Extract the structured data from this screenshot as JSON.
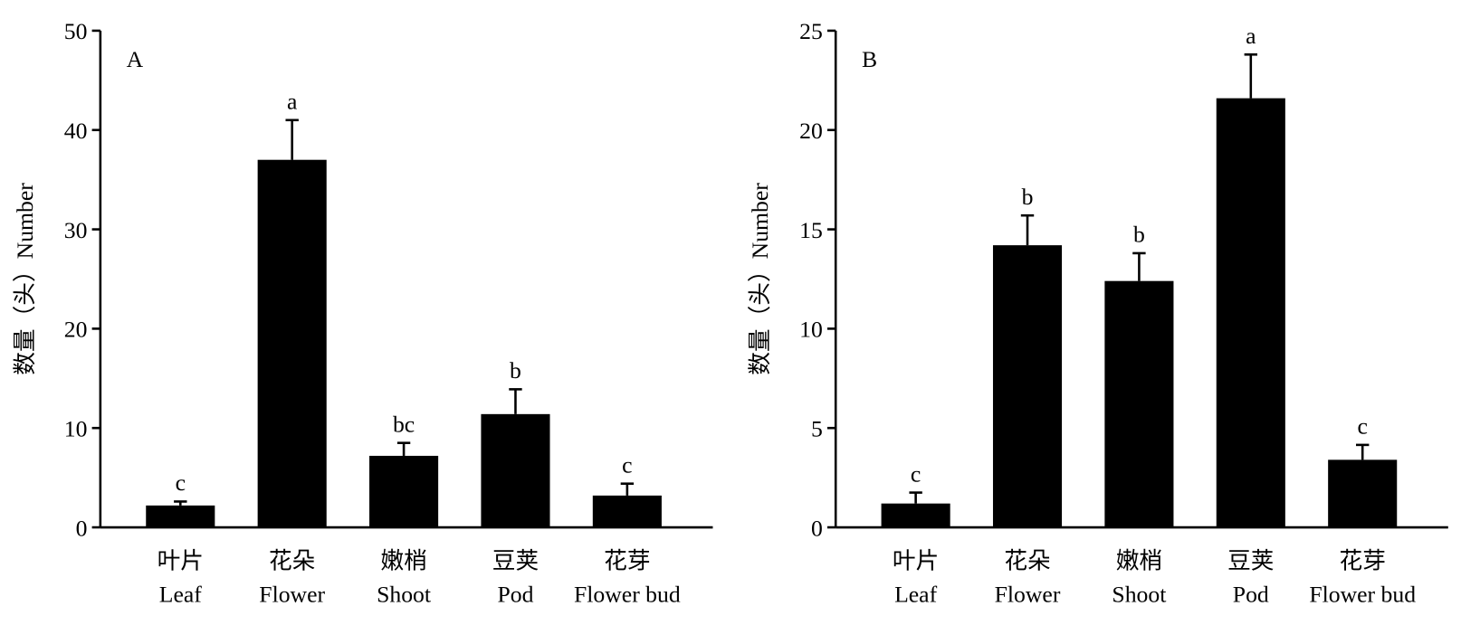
{
  "chart_data": [
    {
      "type": "bar",
      "panel": "A",
      "ylabel": "数量（头）Number",
      "categories_zh": [
        "叶片",
        "花朵",
        "嫩梢",
        "豆荚",
        "花芽"
      ],
      "categories": [
        "Leaf",
        "Flower",
        "Shoot",
        "Pod",
        "Flower bud"
      ],
      "values": [
        2.2,
        37,
        7.2,
        11.4,
        3.2
      ],
      "errors": [
        0.4,
        4,
        1.3,
        2.5,
        1.2
      ],
      "letters": [
        "c",
        "a",
        "bc",
        "b",
        "c"
      ],
      "color": "#000000",
      "ylim": [
        0,
        50
      ],
      "yticks": [
        0,
        10,
        20,
        30,
        40,
        50
      ]
    },
    {
      "type": "bar",
      "panel": "B",
      "ylabel": "数量（头）Number",
      "categories_zh": [
        "叶片",
        "花朵",
        "嫩梢",
        "豆荚",
        "花芽"
      ],
      "categories": [
        "Leaf",
        "Flower",
        "Shoot",
        "Pod",
        "Flower bud"
      ],
      "values": [
        1.2,
        14.2,
        12.4,
        21.6,
        3.4
      ],
      "errors": [
        0.55,
        1.5,
        1.4,
        2.2,
        0.75
      ],
      "letters": [
        "c",
        "b",
        "b",
        "a",
        "c"
      ],
      "color": "#000000",
      "ylim": [
        0,
        25
      ],
      "yticks": [
        0,
        5,
        10,
        15,
        20,
        25
      ]
    }
  ]
}
